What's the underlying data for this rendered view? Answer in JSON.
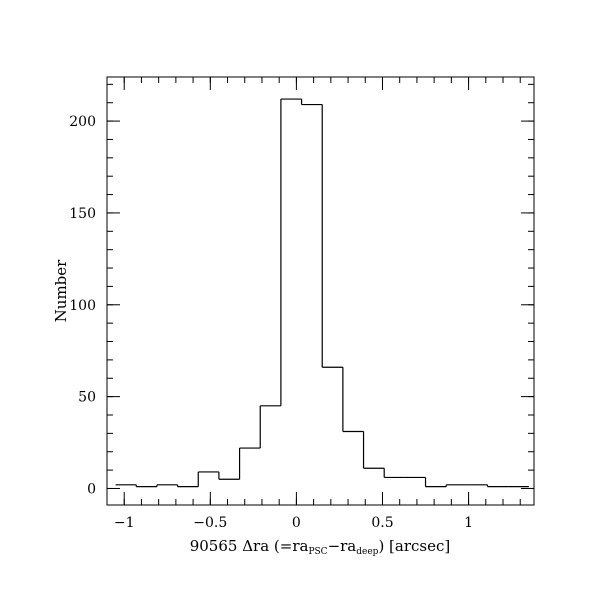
{
  "chart_data": {
    "type": "histogram",
    "title": "",
    "xlabel": {
      "prefix": "90565 Δra (=ra",
      "sub1": "PSC",
      "mid": "−ra",
      "sub2": "deep",
      "suffix": ") [arcsec]"
    },
    "ylabel": "Number",
    "xlim": [
      -1.1,
      1.38
    ],
    "ylim": [
      -9,
      224
    ],
    "x_ticks": [
      {
        "value": -1,
        "label": "−1"
      },
      {
        "value": -0.5,
        "label": "−0.5"
      },
      {
        "value": 0,
        "label": "0"
      },
      {
        "value": 0.5,
        "label": "0.5"
      },
      {
        "value": 1,
        "label": "1"
      }
    ],
    "y_ticks": [
      {
        "value": 0,
        "label": "0"
      },
      {
        "value": 50,
        "label": "50"
      },
      {
        "value": 100,
        "label": "100"
      },
      {
        "value": 150,
        "label": "150"
      },
      {
        "value": 200,
        "label": "200"
      }
    ],
    "x_minor_step": 0.1,
    "y_minor_step": 10,
    "bin_edges": [
      -1.05,
      -0.93,
      -0.81,
      -0.69,
      -0.57,
      -0.45,
      -0.33,
      -0.21,
      -0.09,
      0.03,
      0.15,
      0.27,
      0.39,
      0.51,
      0.63,
      0.75,
      0.87,
      0.99,
      1.11,
      1.23,
      1.35
    ],
    "counts": [
      2,
      1,
      2,
      1,
      9,
      5,
      22,
      45,
      212,
      209,
      66,
      31,
      11,
      6,
      6,
      1,
      2,
      2,
      1,
      1
    ],
    "grid": false,
    "legend": "none",
    "line_color": "#000000"
  }
}
